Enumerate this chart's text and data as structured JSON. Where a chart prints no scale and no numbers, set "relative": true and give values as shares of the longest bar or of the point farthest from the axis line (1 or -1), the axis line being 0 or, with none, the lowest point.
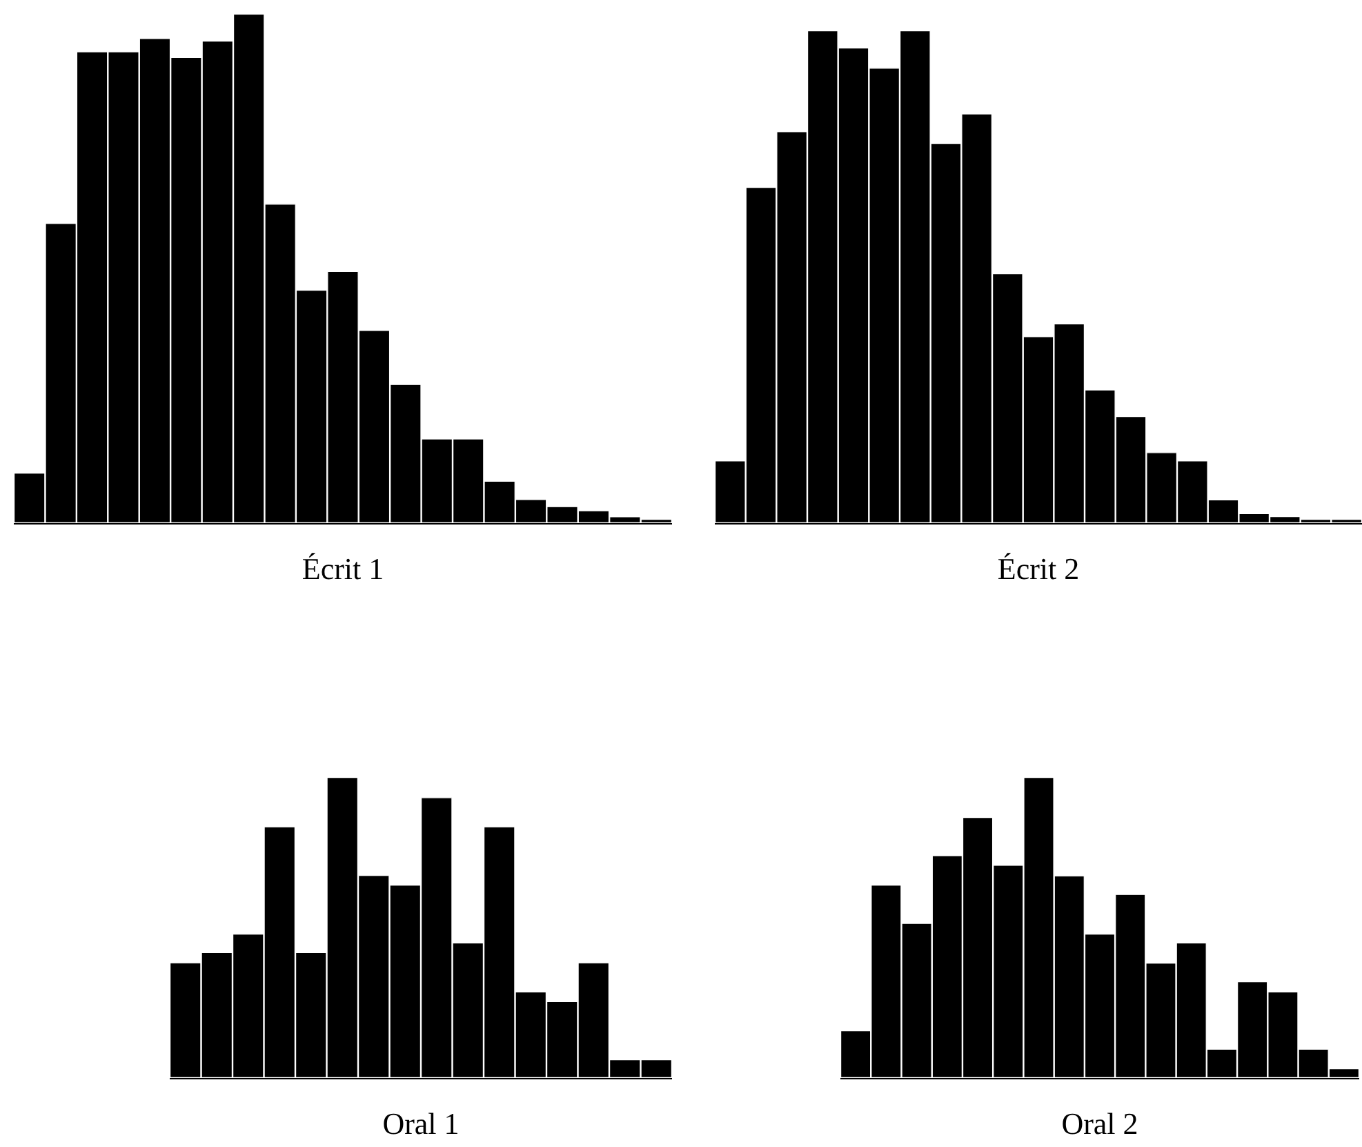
{
  "chart_data": [
    {
      "type": "bar",
      "xlabel": "Écrit 1",
      "relative": true,
      "categories": [
        null,
        null,
        null,
        null,
        null,
        null,
        null,
        null,
        null,
        null,
        null,
        null,
        null,
        null,
        null,
        null,
        null,
        null,
        null,
        null,
        null
      ],
      "color": "#000000",
      "values": [
        0.099,
        0.589,
        0.926,
        0.926,
        0.952,
        0.915,
        0.947,
        1,
        0.627,
        0.458,
        0.495,
        0.379,
        0.273,
        0.166,
        0.166,
        0.083,
        0.047,
        0.033,
        0.025,
        0.013,
        0.004
      ]
    },
    {
      "type": "bar",
      "xlabel": "Écrit 2",
      "relative": true,
      "categories": [
        null,
        null,
        null,
        null,
        null,
        null,
        null,
        null,
        null,
        null,
        null,
        null,
        null,
        null,
        null,
        null,
        null,
        null,
        null,
        null,
        null
      ],
      "color": "#000000",
      "values": [
        0.127,
        0.682,
        0.795,
        1,
        0.965,
        0.924,
        1,
        0.771,
        0.831,
        0.507,
        0.379,
        0.405,
        0.271,
        0.217,
        0.144,
        0.127,
        0.048,
        0.02,
        0.014,
        0.005,
        0.005
      ]
    },
    {
      "type": "bar",
      "xlabel": "Oral 1",
      "relative": true,
      "categories": [
        null,
        null,
        null,
        null,
        null,
        null,
        null,
        null,
        null,
        null,
        null,
        null,
        null,
        null,
        null,
        null
      ],
      "color": "#000000",
      "values": [
        0.384,
        0.418,
        0.479,
        0.836,
        0.418,
        1,
        0.674,
        0.642,
        0.933,
        0.45,
        0.836,
        0.287,
        0.255,
        0.384,
        0.062,
        0.062
      ]
    },
    {
      "type": "bar",
      "xlabel": "Oral 2",
      "relative": true,
      "categories": [
        null,
        null,
        null,
        null,
        null,
        null,
        null,
        null,
        null,
        null,
        null,
        null,
        null,
        null,
        null,
        null,
        null
      ],
      "color": "#000000",
      "values": [
        0.158,
        0.642,
        0.515,
        0.74,
        0.867,
        0.708,
        1,
        0.673,
        0.479,
        0.611,
        0.383,
        0.45,
        0.097,
        0.321,
        0.287,
        0.097,
        0.032
      ]
    }
  ]
}
